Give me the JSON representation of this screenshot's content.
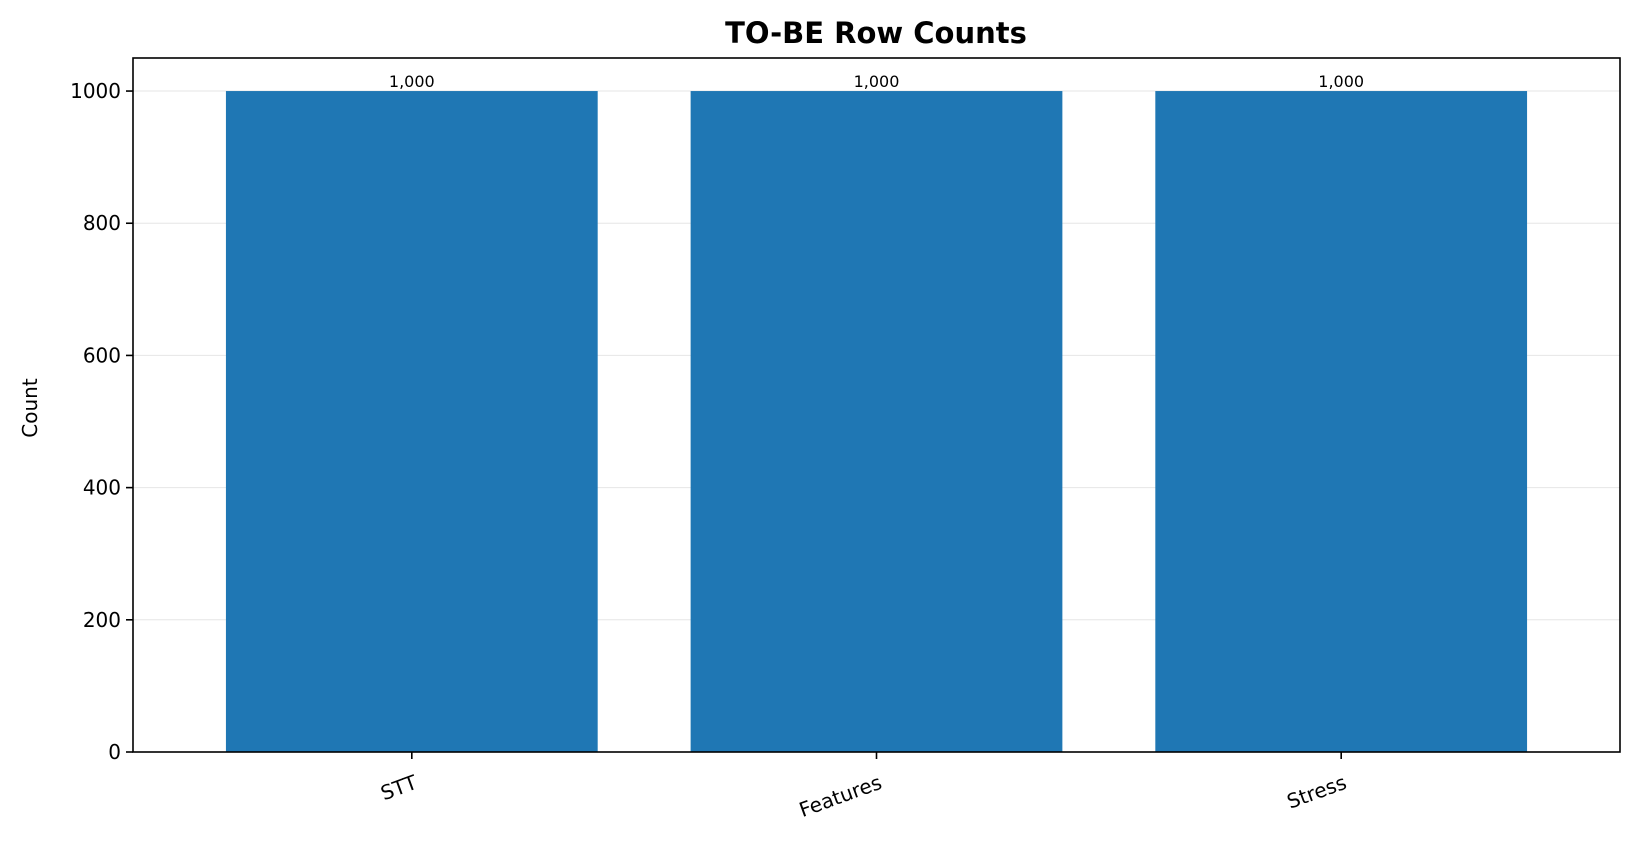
{
  "chart_data": {
    "type": "bar",
    "title": "TO-BE Row Counts",
    "xlabel": "",
    "ylabel": "Count",
    "categories": [
      "STT",
      "Features",
      "Stress"
    ],
    "values": [
      1000,
      1000,
      1000
    ],
    "value_labels": [
      "1,000",
      "1,000",
      "1,000"
    ],
    "ylim": [
      0,
      1050
    ],
    "yticks": [
      0,
      200,
      400,
      600,
      800,
      1000
    ],
    "grid": "y",
    "xtick_rotation_deg": -20,
    "bar_color": "#1f77b4",
    "grid_color": "#e6e6e6"
  }
}
